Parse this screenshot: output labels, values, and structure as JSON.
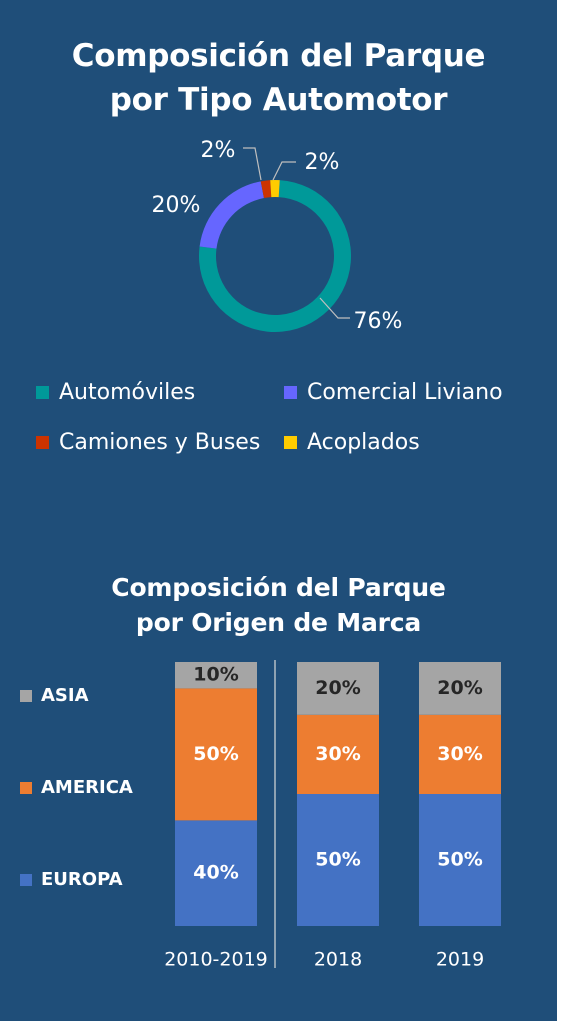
{
  "colors": {
    "background": "#1f4e79",
    "automoviles": "#009999",
    "comercial": "#6666ff",
    "camiones": "#cc3300",
    "acoplados": "#ffcc00",
    "asia": "#a5a5a5",
    "america": "#ed7d31",
    "europa": "#4472c4"
  },
  "chart_data": [
    {
      "type": "pie",
      "variant": "donut",
      "title": "Composición del Parque por Tipo Automotor",
      "title_lines": [
        "Composición del Parque",
        "por Tipo Automotor"
      ],
      "slices": [
        {
          "name": "Automóviles",
          "value": 76,
          "label": "76%",
          "color": "#009999"
        },
        {
          "name": "Comercial Liviano",
          "value": 20,
          "label": "20%",
          "color": "#6666ff"
        },
        {
          "name": "Camiones y Buses",
          "value": 2,
          "label": "2%",
          "color": "#cc3300"
        },
        {
          "name": "Acoplados",
          "value": 2,
          "label": "2%",
          "color": "#ffcc00"
        }
      ],
      "legend_position": "bottom"
    },
    {
      "type": "bar",
      "variant": "stacked-100",
      "title": "Composición del Parque por Origen de Marca",
      "title_lines": [
        "Composición del Parque",
        "por Origen de Marca"
      ],
      "categories": [
        "2010-2019",
        "2018",
        "2019"
      ],
      "series": [
        {
          "name": "EUROPA",
          "values": [
            40,
            50,
            50
          ],
          "labels": [
            "40%",
            "50%",
            "50%"
          ],
          "color": "#4472c4"
        },
        {
          "name": "AMERICA",
          "values": [
            50,
            30,
            30
          ],
          "labels": [
            "50%",
            "30%",
            "30%"
          ],
          "color": "#ed7d31"
        },
        {
          "name": "ASIA",
          "values": [
            10,
            20,
            20
          ],
          "labels": [
            "10%",
            "20%",
            "20%"
          ],
          "color": "#a5a5a5"
        }
      ],
      "ylim": [
        0,
        100
      ],
      "legend_position": "left"
    }
  ]
}
